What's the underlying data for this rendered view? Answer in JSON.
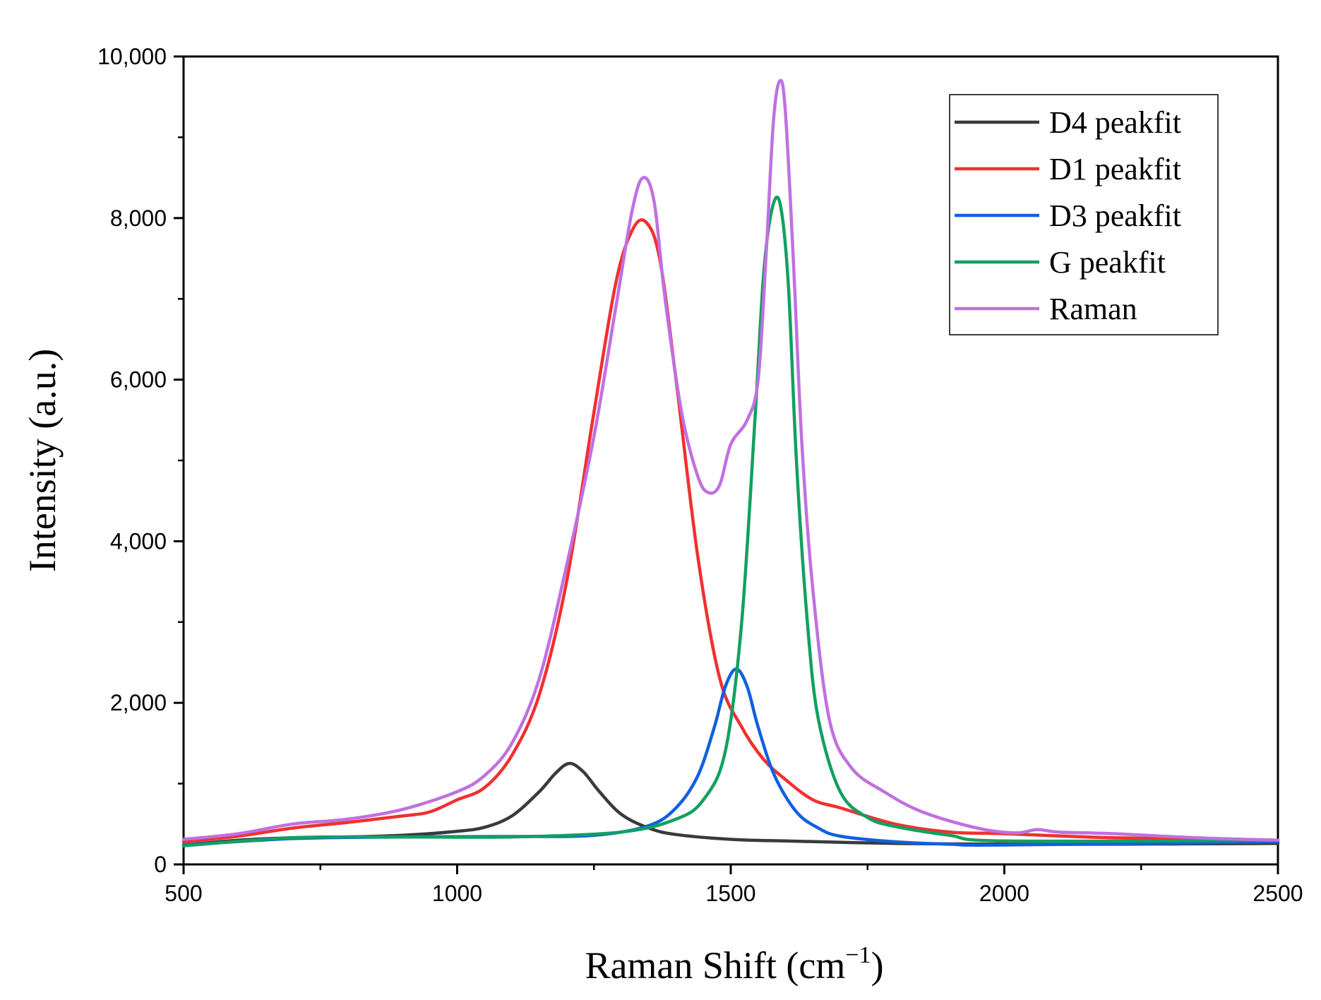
{
  "chart_data": {
    "type": "line",
    "title": "",
    "xlabel": "Raman Shift (cm",
    "xlabel_sup": "−1",
    "xlabel_close": ")",
    "ylabel": "Intensity (a.u.)",
    "xlim": [
      500,
      2500
    ],
    "ylim": [
      0,
      10000
    ],
    "x_ticks": [
      500,
      1000,
      1500,
      2000,
      2500
    ],
    "x_tick_labels": [
      "500",
      "1000",
      "1500",
      "2000",
      "2500"
    ],
    "y_ticks": [
      0,
      2000,
      4000,
      6000,
      8000,
      10000
    ],
    "y_tick_labels": [
      "0",
      "2,000",
      "4,000",
      "6,000",
      "8,000",
      "10,000"
    ],
    "grid": false,
    "legend_position": "top-right",
    "series": [
      {
        "name": "D4 peakfit",
        "color": "#3a3a3a",
        "x": [
          500,
          600,
          700,
          800,
          900,
          1000,
          1050,
          1100,
          1150,
          1180,
          1205,
          1230,
          1260,
          1300,
          1350,
          1400,
          1500,
          1600,
          1800,
          2000,
          2200,
          2500
        ],
        "y": [
          240,
          300,
          330,
          340,
          360,
          410,
          460,
          600,
          900,
          1130,
          1250,
          1150,
          900,
          620,
          450,
          370,
          310,
          290,
          260,
          250,
          250,
          260
        ]
      },
      {
        "name": "D1 peakfit",
        "color": "#f03030",
        "x": [
          500,
          600,
          700,
          800,
          900,
          950,
          1000,
          1050,
          1100,
          1150,
          1200,
          1250,
          1290,
          1320,
          1345,
          1370,
          1400,
          1440,
          1480,
          1520,
          1560,
          1600,
          1650,
          1700,
          1800,
          1900,
          2000,
          2200,
          2500
        ],
        "y": [
          280,
          350,
          450,
          520,
          600,
          650,
          800,
          950,
          1350,
          2100,
          3500,
          5600,
          7200,
          7850,
          7950,
          7500,
          6000,
          3800,
          2300,
          1700,
          1300,
          1050,
          800,
          700,
          500,
          400,
          380,
          330,
          300
        ]
      },
      {
        "name": "D3 peakfit",
        "color": "#1060e0",
        "x": [
          500,
          700,
          900,
          1100,
          1250,
          1350,
          1400,
          1440,
          1470,
          1490,
          1510,
          1530,
          1550,
          1580,
          1620,
          1660,
          1700,
          1800,
          1900,
          2000,
          2500
        ],
        "y": [
          240,
          320,
          340,
          345,
          360,
          480,
          700,
          1100,
          1700,
          2200,
          2420,
          2200,
          1700,
          1100,
          650,
          450,
          350,
          280,
          250,
          240,
          280
        ]
      },
      {
        "name": "G peakfit",
        "color": "#12a060",
        "x": [
          500,
          700,
          900,
          1100,
          1300,
          1400,
          1450,
          1490,
          1520,
          1545,
          1560,
          1575,
          1590,
          1605,
          1620,
          1640,
          1660,
          1700,
          1750,
          1800,
          1900,
          2000,
          2500
        ],
        "y": [
          230,
          330,
          340,
          340,
          400,
          560,
          800,
          1400,
          3000,
          5600,
          7300,
          8100,
          8180,
          7200,
          5000,
          3000,
          1800,
          900,
          580,
          470,
          360,
          290,
          300
        ]
      },
      {
        "name": "Raman",
        "color": "#c070e0",
        "x": [
          500,
          600,
          700,
          800,
          900,
          1000,
          1050,
          1100,
          1150,
          1200,
          1250,
          1290,
          1320,
          1340,
          1360,
          1380,
          1410,
          1440,
          1460,
          1480,
          1500,
          1530,
          1550,
          1565,
          1578,
          1590,
          1600,
          1615,
          1630,
          1650,
          1680,
          1720,
          1780,
          1850,
          1950,
          2020,
          2060,
          2100,
          2200,
          2350,
          2500
        ],
        "y": [
          310,
          380,
          500,
          560,
          680,
          900,
          1100,
          1500,
          2300,
          3700,
          5300,
          6900,
          8100,
          8500,
          8200,
          7000,
          5600,
          4800,
          4600,
          4700,
          5200,
          5500,
          6000,
          7600,
          9200,
          9700,
          9300,
          7400,
          5200,
          3400,
          1800,
          1200,
          900,
          650,
          450,
          390,
          430,
          400,
          380,
          330,
          300
        ]
      }
    ]
  }
}
